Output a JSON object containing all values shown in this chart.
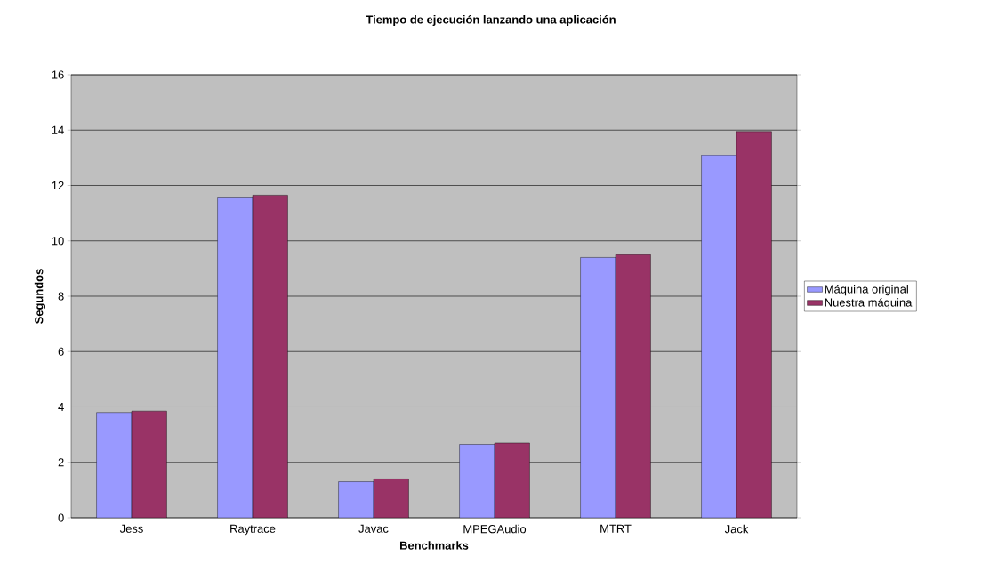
{
  "chart_data": {
    "type": "bar",
    "title": "Tiempo de ejecución lanzando una aplicación",
    "xlabel": "Benchmarks",
    "ylabel": "Segundos",
    "categories": [
      "Jess",
      "Raytrace",
      "Javac",
      "MPEGAudio",
      "MTRT",
      "Jack"
    ],
    "series": [
      {
        "name": "Máquina original",
        "color": "#9999ff",
        "values": [
          3.8,
          11.55,
          1.3,
          2.65,
          9.4,
          13.1
        ]
      },
      {
        "name": "Nuestra máquina",
        "color": "#993366",
        "values": [
          3.85,
          11.65,
          1.4,
          2.7,
          9.5,
          13.95
        ]
      }
    ],
    "ylim": [
      0,
      16
    ],
    "yticks": [
      0,
      2,
      4,
      6,
      8,
      10,
      12,
      14,
      16
    ],
    "grid": "y",
    "legend": "right"
  }
}
